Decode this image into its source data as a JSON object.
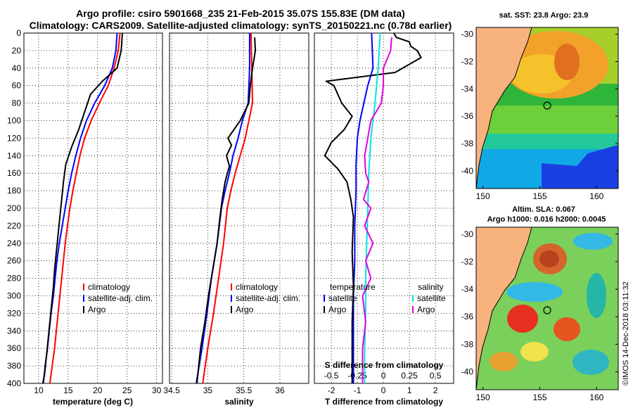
{
  "figure": {
    "title_line1": "Argo profile: csiro 5901668_235 21-Feb-2015 35.07S 155.83E (DM data)",
    "title_line2": "Climatology: CARS2009. Satellite-adjusted climatology: synTS_20150221.nc (0.78d earlier)",
    "side_text": "©IMOS 14-Dec-2018 03:11:32"
  },
  "colors": {
    "climatology": "#ff0000",
    "satellite": "#0000ff",
    "argo": "#000000",
    "sat_salinity": "#00e5e5",
    "argo_salinity_diff": "#e000e0",
    "land": "#f7b27d"
  },
  "chart_data": [
    {
      "id": "temperature",
      "type": "line",
      "xlabel": "temperature (deg C)",
      "ylabel": "",
      "xlim": [
        7.5,
        31
      ],
      "ylim": [
        400,
        0
      ],
      "xticks": [
        "10",
        "15",
        "20",
        "25",
        "30"
      ],
      "xtick_values": [
        10,
        15,
        20,
        25,
        30
      ],
      "yticks": [
        "0",
        "20",
        "40",
        "60",
        "80",
        "100",
        "120",
        "140",
        "160",
        "180",
        "200",
        "220",
        "240",
        "260",
        "280",
        "300",
        "320",
        "340",
        "360",
        "380",
        "400"
      ],
      "ytick_values": [
        0,
        20,
        40,
        60,
        80,
        100,
        120,
        140,
        160,
        180,
        200,
        220,
        240,
        260,
        280,
        300,
        320,
        340,
        360,
        380,
        400
      ],
      "legend": [
        "climatology",
        "satellite-adj. clim.",
        "Argo"
      ],
      "series": [
        {
          "name": "climatology",
          "color": "#ff0000",
          "points": [
            [
              23.8,
              0
            ],
            [
              23.5,
              20
            ],
            [
              22.8,
              40
            ],
            [
              21.8,
              60
            ],
            [
              20.3,
              80
            ],
            [
              18.9,
              100
            ],
            [
              17.8,
              120
            ],
            [
              17,
              140
            ],
            [
              16.4,
              160
            ],
            [
              15.8,
              180
            ],
            [
              15.3,
              200
            ],
            [
              14.9,
              220
            ],
            [
              14.5,
              240
            ],
            [
              14.2,
              260
            ],
            [
              13.9,
              280
            ],
            [
              13.6,
              300
            ],
            [
              13.3,
              320
            ],
            [
              13.0,
              340
            ],
            [
              12.7,
              360
            ],
            [
              12.3,
              380
            ],
            [
              11.9,
              400
            ]
          ]
        },
        {
          "name": "satellite-adj. clim.",
          "color": "#0000ff",
          "points": [
            [
              23.3,
              0
            ],
            [
              23.1,
              20
            ],
            [
              22.5,
              40
            ],
            [
              21.2,
              60
            ],
            [
              19.5,
              80
            ],
            [
              18.1,
              100
            ],
            [
              17.1,
              120
            ],
            [
              16.3,
              140
            ],
            [
              15.6,
              160
            ],
            [
              15.0,
              180
            ],
            [
              14.5,
              200
            ],
            [
              14.0,
              220
            ],
            [
              13.5,
              240
            ],
            [
              13.1,
              260
            ],
            [
              12.8,
              280
            ],
            [
              12.5,
              300
            ],
            [
              12.1,
              320
            ],
            [
              11.8,
              340
            ],
            [
              11.5,
              360
            ],
            [
              11.1,
              380
            ],
            [
              10.8,
              400
            ]
          ]
        },
        {
          "name": "Argo",
          "color": "#000000",
          "points": [
            [
              24.2,
              0
            ],
            [
              24.0,
              20
            ],
            [
              23.3,
              40
            ],
            [
              20.8,
              55
            ],
            [
              18.8,
              70
            ],
            [
              17.8,
              90
            ],
            [
              16.8,
              110
            ],
            [
              15.6,
              130
            ],
            [
              14.6,
              150
            ],
            [
              14.2,
              170
            ],
            [
              13.9,
              190
            ],
            [
              13.6,
              210
            ],
            [
              13.3,
              230
            ],
            [
              13.0,
              250
            ],
            [
              12.7,
              270
            ],
            [
              12.5,
              290
            ],
            [
              12.2,
              310
            ],
            [
              11.9,
              330
            ],
            [
              11.6,
              350
            ],
            [
              11.3,
              370
            ],
            [
              11.0,
              390
            ],
            [
              10.7,
              400
            ]
          ]
        }
      ]
    },
    {
      "id": "salinity",
      "type": "line",
      "xlabel": "salinity",
      "ylabel": "",
      "xlim": [
        34.47,
        36.4
      ],
      "ylim": [
        400,
        0
      ],
      "xticks": [
        "34.5",
        "35",
        "35.5",
        "36"
      ],
      "xtick_values": [
        34.5,
        35,
        35.5,
        36
      ],
      "legend": [
        "climatology",
        "satellite-adj. clim.",
        "Argo"
      ],
      "series": [
        {
          "name": "climatology",
          "color": "#ff0000",
          "points": [
            [
              35.6,
              0
            ],
            [
              35.61,
              40
            ],
            [
              35.62,
              80
            ],
            [
              35.57,
              100
            ],
            [
              35.52,
              120
            ],
            [
              35.45,
              140
            ],
            [
              35.38,
              160
            ],
            [
              35.32,
              180
            ],
            [
              35.27,
              200
            ],
            [
              35.22,
              240
            ],
            [
              35.15,
              280
            ],
            [
              35.08,
              320
            ],
            [
              35.0,
              360
            ],
            [
              34.93,
              400
            ]
          ]
        },
        {
          "name": "satellite-adj. clim.",
          "color": "#0000ff",
          "points": [
            [
              35.58,
              0
            ],
            [
              35.58,
              40
            ],
            [
              35.56,
              80
            ],
            [
              35.48,
              100
            ],
            [
              35.42,
              120
            ],
            [
              35.35,
              140
            ],
            [
              35.3,
              160
            ],
            [
              35.24,
              180
            ],
            [
              35.19,
              200
            ],
            [
              35.13,
              240
            ],
            [
              35.05,
              280
            ],
            [
              34.99,
              320
            ],
            [
              34.92,
              360
            ],
            [
              34.84,
              400
            ]
          ]
        },
        {
          "name": "Argo",
          "color": "#000000",
          "points": [
            [
              35.65,
              5
            ],
            [
              35.66,
              20
            ],
            [
              35.62,
              40
            ],
            [
              35.59,
              60
            ],
            [
              35.57,
              80
            ],
            [
              35.45,
              100
            ],
            [
              35.28,
              120
            ],
            [
              35.33,
              128
            ],
            [
              35.26,
              140
            ],
            [
              35.3,
              152
            ],
            [
              35.24,
              170
            ],
            [
              35.2,
              190
            ],
            [
              35.17,
              210
            ],
            [
              35.13,
              240
            ],
            [
              35.07,
              270
            ],
            [
              35.01,
              300
            ],
            [
              34.96,
              330
            ],
            [
              34.9,
              360
            ],
            [
              34.85,
              400
            ]
          ]
        }
      ]
    },
    {
      "id": "difference",
      "type": "line",
      "xlabel": "T difference from climatology",
      "xlabel_top": "S difference from climatology",
      "xlim": [
        -2.65,
        2.7
      ],
      "ylim": [
        400,
        0
      ],
      "xticks": [
        "-2",
        "-1",
        "0",
        "1",
        "2"
      ],
      "xtick_values": [
        -2,
        -1,
        0,
        1,
        2
      ],
      "xticks_salinity": [
        "-0.5",
        "-0.25",
        "0",
        "0.25",
        "0.5"
      ],
      "xtick_values_salinity": [
        -0.5,
        -0.25,
        0,
        0.25,
        0.5
      ],
      "legend_temperature_title": "temperature",
      "legend_salinity_title": "salinity",
      "legend_temperature": [
        "satellite",
        "Argo"
      ],
      "legend_salinity": [
        "satellite",
        "Argo"
      ],
      "series": [
        {
          "name": "temperature satellite",
          "color": "#0000ff",
          "points": [
            [
              -0.45,
              0
            ],
            [
              -0.4,
              40
            ],
            [
              -0.6,
              60
            ],
            [
              -0.75,
              80
            ],
            [
              -0.9,
              100
            ],
            [
              -1.0,
              120
            ],
            [
              -1.05,
              150
            ],
            [
              -1.05,
              180
            ],
            [
              -1.1,
              220
            ],
            [
              -1.1,
              260
            ],
            [
              -1.15,
              300
            ],
            [
              -1.15,
              340
            ],
            [
              -1.15,
              380
            ],
            [
              -1.15,
              400
            ]
          ]
        },
        {
          "name": "temperature Argo",
          "color": "#000000",
          "points": [
            [
              0.4,
              0
            ],
            [
              0.5,
              5
            ],
            [
              1.0,
              10
            ],
            [
              1.05,
              15
            ],
            [
              1.3,
              20
            ],
            [
              1.45,
              28
            ],
            [
              0.45,
              45
            ],
            [
              -2.2,
              55
            ],
            [
              -1.9,
              60
            ],
            [
              -1.6,
              80
            ],
            [
              -1.2,
              95
            ],
            [
              -1.5,
              110
            ],
            [
              -2.0,
              125
            ],
            [
              -2.25,
              140
            ],
            [
              -1.75,
              155
            ],
            [
              -1.4,
              170
            ],
            [
              -1.25,
              190
            ],
            [
              -1.15,
              210
            ],
            [
              -1.2,
              250
            ],
            [
              -1.15,
              290
            ],
            [
              -1.2,
              330
            ],
            [
              -1.2,
              370
            ],
            [
              -1.2,
              400
            ]
          ]
        },
        {
          "name": "salinity satellite",
          "color": "#00e5e5",
          "points": [
            [
              -0.03,
              0
            ],
            [
              -0.05,
              40
            ],
            [
              -0.08,
              80
            ],
            [
              -0.12,
              120
            ],
            [
              -0.14,
              160
            ],
            [
              -0.15,
              200
            ],
            [
              -0.16,
              240
            ],
            [
              -0.17,
              280
            ],
            [
              -0.17,
              320
            ],
            [
              -0.18,
              360
            ],
            [
              -0.18,
              400
            ]
          ]
        },
        {
          "name": "salinity Argo",
          "color": "#e000e0",
          "points": [
            [
              0.08,
              5
            ],
            [
              0.07,
              20
            ],
            [
              0.0,
              40
            ],
            [
              0.0,
              60
            ],
            [
              -0.02,
              80
            ],
            [
              -0.12,
              100
            ],
            [
              -0.15,
              120
            ],
            [
              -0.18,
              140
            ],
            [
              -0.17,
              160
            ],
            [
              -0.14,
              170
            ],
            [
              -0.19,
              190
            ],
            [
              -0.12,
              200
            ],
            [
              -0.18,
              220
            ],
            [
              -0.1,
              240
            ],
            [
              -0.17,
              260
            ],
            [
              -0.12,
              280
            ],
            [
              -0.2,
              300
            ],
            [
              -0.17,
              330
            ],
            [
              -0.2,
              360
            ],
            [
              -0.2,
              400
            ]
          ]
        }
      ]
    }
  ],
  "map_sst": {
    "title": "sat. SST: 23.8 Argo: 23.9",
    "xticks": [
      "150",
      "155",
      "160"
    ],
    "yticks": [
      "-30",
      "-32",
      "-34",
      "-36",
      "-38",
      "-40"
    ]
  },
  "map_sla": {
    "title_line1": "Altim. SLA: 0.067",
    "title_line2": "Argo h1000: 0.016 h2000: 0.0045",
    "xticks": [
      "150",
      "155",
      "160"
    ],
    "yticks": [
      "-30",
      "-32",
      "-34",
      "-36",
      "-38",
      "-40"
    ]
  }
}
